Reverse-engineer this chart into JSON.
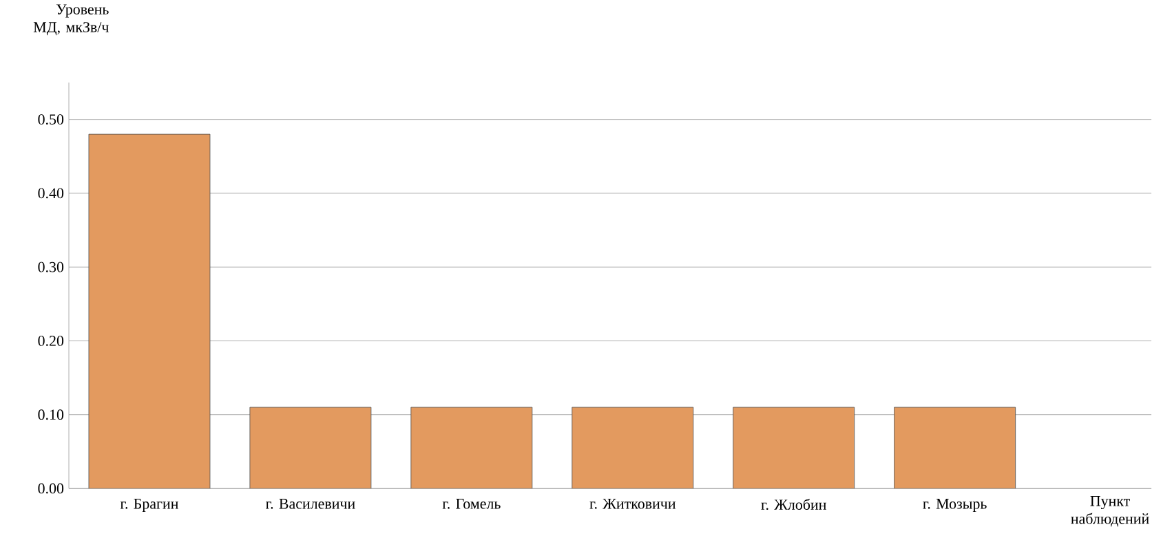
{
  "chart_data": {
    "type": "bar",
    "ylabel": "Уровень МД, мкЗв/ч",
    "xlabel": "Пункт наблюдений",
    "categories": [
      "г. Брагин",
      "г. Василевичи",
      "г. Гомель",
      "г. Житковичи",
      "г. Жлобин",
      "г. Мозырь"
    ],
    "values": [
      0.48,
      0.11,
      0.11,
      0.11,
      0.11,
      0.11
    ],
    "color": "#e39a5f",
    "ylim": [
      0,
      0.55
    ],
    "yticks": [
      {
        "value": 0,
        "label": "0.00"
      },
      {
        "value": 0.1,
        "label": "0.10"
      },
      {
        "value": 0.2,
        "label": "0.20"
      },
      {
        "value": 0.3,
        "label": "0.30"
      },
      {
        "value": 0.4,
        "label": "0.40"
      },
      {
        "value": 0.5,
        "label": "0.50"
      }
    ],
    "grid": "y"
  }
}
